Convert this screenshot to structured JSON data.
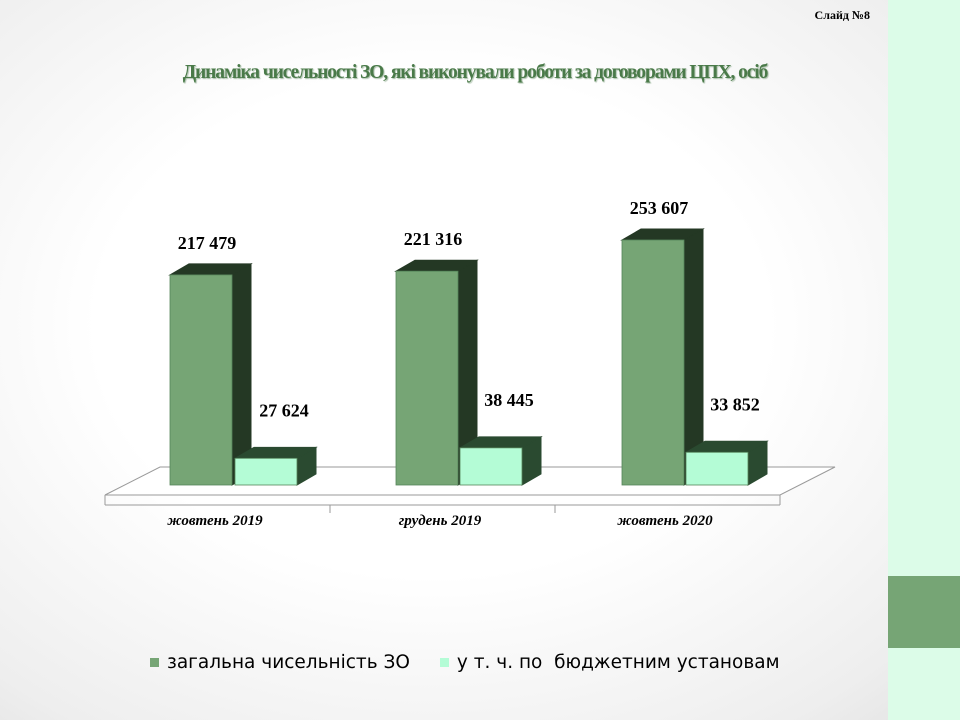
{
  "slide": {
    "number_label": "Слайд №8"
  },
  "colors": {
    "total_front": "#76a575",
    "total_side": "#243824",
    "budget_front": "#b4fcd6",
    "budget_side": "#2a4a30",
    "accent_strip": "#dcfce8",
    "accent_box": "#76a575"
  },
  "chart_data": {
    "type": "bar",
    "title": "Динаміка чисельності ЗО, які виконували роботи за договорами ЦПХ, осіб",
    "categories": [
      "жовтень 2019",
      "грудень 2019",
      "жовтень 2020"
    ],
    "series": [
      {
        "name": "загальна чисельність ЗО",
        "values": [
          217479,
          221316,
          253607
        ],
        "labels": [
          "217 479",
          "221 316",
          "253 607"
        ]
      },
      {
        "name": "у т. ч. по  бюджетним установам",
        "values": [
          27624,
          38445,
          33852
        ],
        "labels": [
          "27 624",
          "38 445",
          "33 852"
        ]
      }
    ],
    "grid": false,
    "legend_position": "bottom",
    "three_d": true
  }
}
